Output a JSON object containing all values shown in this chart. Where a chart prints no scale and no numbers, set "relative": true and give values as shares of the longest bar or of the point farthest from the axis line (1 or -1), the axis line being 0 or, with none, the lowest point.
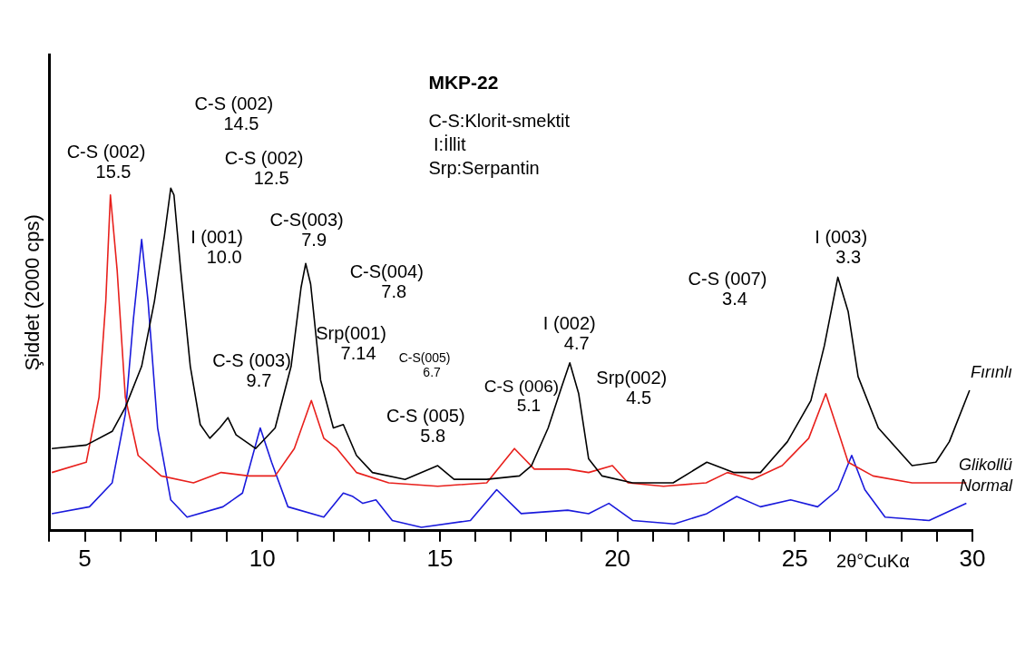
{
  "chart_data": {
    "type": "line",
    "title": "MKP-22",
    "xlabel": "2θ°CuKα",
    "ylabel": "Şiddet (2000 cps)",
    "relative": true,
    "marker": "none",
    "line_style": "solid",
    "xlim": [
      4,
      30
    ],
    "xticks": [
      {
        "value": 4,
        "label": null
      },
      5,
      {
        "value": 6,
        "label": null
      },
      {
        "value": 7,
        "label": null
      },
      {
        "value": 8,
        "label": null
      },
      {
        "value": 9,
        "label": null
      },
      10,
      {
        "value": 11,
        "label": null
      },
      {
        "value": 12,
        "label": null
      },
      {
        "value": 13,
        "label": null
      },
      {
        "value": 14,
        "label": null
      },
      15,
      {
        "value": 16,
        "label": null
      },
      {
        "value": 17,
        "label": null
      },
      {
        "value": 18,
        "label": null
      },
      {
        "value": 19,
        "label": null
      },
      20,
      {
        "value": 21,
        "label": null
      },
      {
        "value": 22,
        "label": null
      },
      {
        "value": 23,
        "label": null
      },
      {
        "value": 24,
        "label": null
      },
      25,
      {
        "value": 26,
        "label": null
      },
      {
        "value": 27,
        "label": null
      },
      {
        "value": 28,
        "label": null
      },
      {
        "value": 29,
        "label": null
      },
      30
    ],
    "series": [
      {
        "name": "Fırınlı",
        "color": "#000000",
        "x": [
          4.07,
          5.04,
          5.77,
          6.14,
          6.6,
          6.96,
          7.24,
          7.42,
          7.51,
          7.7,
          7.97,
          8.25,
          8.52,
          8.8,
          9.03,
          9.26,
          9.81,
          10.36,
          10.81,
          11.09,
          11.22,
          11.36,
          11.64,
          12.0,
          12.28,
          12.65,
          13.1,
          14.02,
          14.94,
          15.4,
          16.32,
          17.24,
          17.58,
          18.05,
          18.43,
          18.66,
          18.91,
          19.19,
          19.57,
          20.43,
          21.57,
          22.52,
          23.27,
          24.03,
          24.79,
          25.45,
          25.83,
          26.21,
          26.5,
          26.78,
          27.35,
          28.3,
          28.97,
          29.35,
          29.92
        ],
        "values": [
          0.24,
          0.25,
          0.29,
          0.36,
          0.48,
          0.67,
          0.86,
          1.0,
          0.98,
          0.76,
          0.48,
          0.31,
          0.27,
          0.3,
          0.33,
          0.28,
          0.24,
          0.3,
          0.48,
          0.71,
          0.78,
          0.72,
          0.44,
          0.3,
          0.31,
          0.22,
          0.17,
          0.15,
          0.19,
          0.15,
          0.15,
          0.16,
          0.19,
          0.3,
          0.42,
          0.49,
          0.4,
          0.21,
          0.16,
          0.14,
          0.14,
          0.2,
          0.17,
          0.17,
          0.26,
          0.38,
          0.54,
          0.74,
          0.64,
          0.45,
          0.3,
          0.19,
          0.2,
          0.26,
          0.41
        ]
      },
      {
        "name": "Glikollü",
        "color": "#e8201c",
        "x": [
          4.07,
          5.04,
          5.4,
          5.59,
          5.72,
          5.91,
          6.14,
          6.5,
          7.15,
          8.06,
          8.84,
          9.62,
          10.36,
          10.9,
          11.38,
          11.73,
          12.1,
          12.65,
          13.56,
          14.94,
          16.32,
          17.1,
          17.66,
          18.6,
          19.19,
          19.86,
          20.3,
          21.3,
          22.5,
          23.1,
          23.8,
          24.64,
          25.39,
          25.87,
          26.25,
          26.5,
          27.2,
          28.3,
          29.83
        ],
        "values": [
          0.17,
          0.2,
          0.39,
          0.67,
          0.98,
          0.76,
          0.39,
          0.22,
          0.16,
          0.14,
          0.17,
          0.16,
          0.16,
          0.24,
          0.38,
          0.27,
          0.24,
          0.17,
          0.14,
          0.13,
          0.14,
          0.24,
          0.18,
          0.18,
          0.17,
          0.19,
          0.14,
          0.13,
          0.14,
          0.17,
          0.15,
          0.19,
          0.27,
          0.4,
          0.28,
          0.2,
          0.16,
          0.14,
          0.14
        ]
      },
      {
        "name": "Normal",
        "color": "#1a1adc",
        "x": [
          4.07,
          5.13,
          5.77,
          6.14,
          6.37,
          6.6,
          6.78,
          7.05,
          7.42,
          7.88,
          8.89,
          9.44,
          9.94,
          10.26,
          10.72,
          11.73,
          12.28,
          12.55,
          12.83,
          13.2,
          13.66,
          14.48,
          15.86,
          16.6,
          17.29,
          18.6,
          19.19,
          19.76,
          20.43,
          21.6,
          22.52,
          23.36,
          24.03,
          24.88,
          25.64,
          26.21,
          26.6,
          26.97,
          27.54,
          28.78,
          29.83
        ],
        "values": [
          0.05,
          0.07,
          0.14,
          0.34,
          0.62,
          0.85,
          0.67,
          0.3,
          0.09,
          0.04,
          0.07,
          0.11,
          0.3,
          0.2,
          0.07,
          0.04,
          0.11,
          0.1,
          0.08,
          0.09,
          0.03,
          0.01,
          0.03,
          0.12,
          0.05,
          0.06,
          0.05,
          0.08,
          0.03,
          0.02,
          0.05,
          0.1,
          0.07,
          0.09,
          0.07,
          0.12,
          0.22,
          0.12,
          0.04,
          0.03,
          0.08
        ]
      }
    ],
    "annotations": [
      "C-S (002)\n15.5",
      "C-S (002)\n14.5",
      "C-S (002)\n12.5",
      "I (001)\n10.0",
      "C-S(003)\n7.9",
      "C-S(004)\n7.8",
      "C-S (003)\n9.7",
      "Srp(001)\n7.14",
      "C-S(005)\n6.7",
      "C-S (005)\n5.8",
      "C-S (006)\n5.1",
      "I (002)\n4.7",
      "Srp(002)\n4.5",
      "C-S (007)\n3.4",
      "I (003)\n3.3",
      "C-S:Klorit-smektit",
      " I:İllit",
      "Srp:Serpantin"
    ]
  }
}
